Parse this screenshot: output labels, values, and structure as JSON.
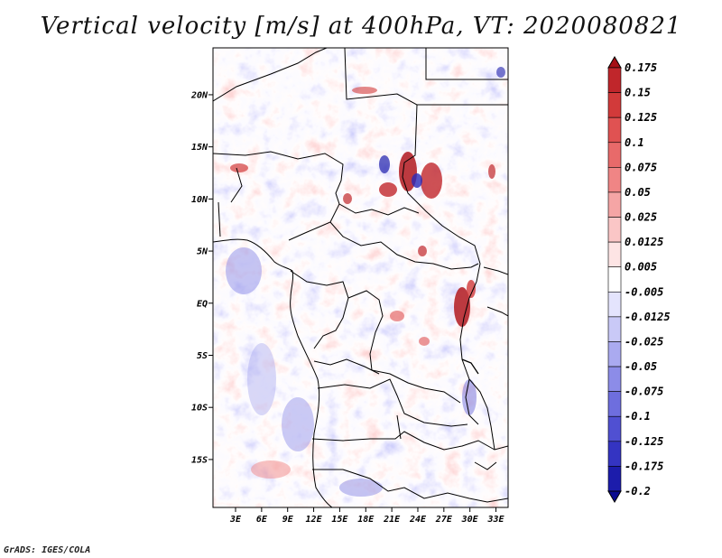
{
  "title": "Vertical velocity [m/s] at 400hPa, VT: 2020080821",
  "credit": "GrADS: IGES/COLA",
  "map": {
    "lat_labels": [
      "20N",
      "15N",
      "10N",
      "5N",
      "EQ",
      "5S",
      "10S",
      "15S"
    ],
    "lon_labels": [
      "3E",
      "6E",
      "9E",
      "12E",
      "15E",
      "18E",
      "21E",
      "24E",
      "27E",
      "30E",
      "33E"
    ],
    "lat_values": [
      20,
      15,
      10,
      5,
      0,
      -5,
      -10,
      -15
    ],
    "lon_values": [
      3,
      6,
      9,
      12,
      15,
      18,
      21,
      24,
      27,
      30,
      33
    ],
    "lon_range": [
      0.4,
      34.4
    ],
    "lat_range": [
      -19.6,
      24.5
    ]
  },
  "colorbar": {
    "labels": [
      "0.175",
      "0.15",
      "0.125",
      "0.1",
      "0.075",
      "0.05",
      "0.025",
      "0.0125",
      "0.005",
      "-0.005",
      "-0.0125",
      "-0.025",
      "-0.05",
      "-0.075",
      "-0.1",
      "-0.125",
      "-0.175",
      "-0.2"
    ],
    "colors": [
      "#a50f15",
      "#c0262b",
      "#d23a3a",
      "#e05252",
      "#e86a6a",
      "#f08585",
      "#f5a5a5",
      "#fac6c6",
      "#fde4e4",
      "#ffffff",
      "#e4e4fd",
      "#c9c9f7",
      "#aaaaf0",
      "#8c8ce8",
      "#6e6ede",
      "#5050d2",
      "#3434c2",
      "#1c1cab",
      "#0a0a90"
    ]
  }
}
